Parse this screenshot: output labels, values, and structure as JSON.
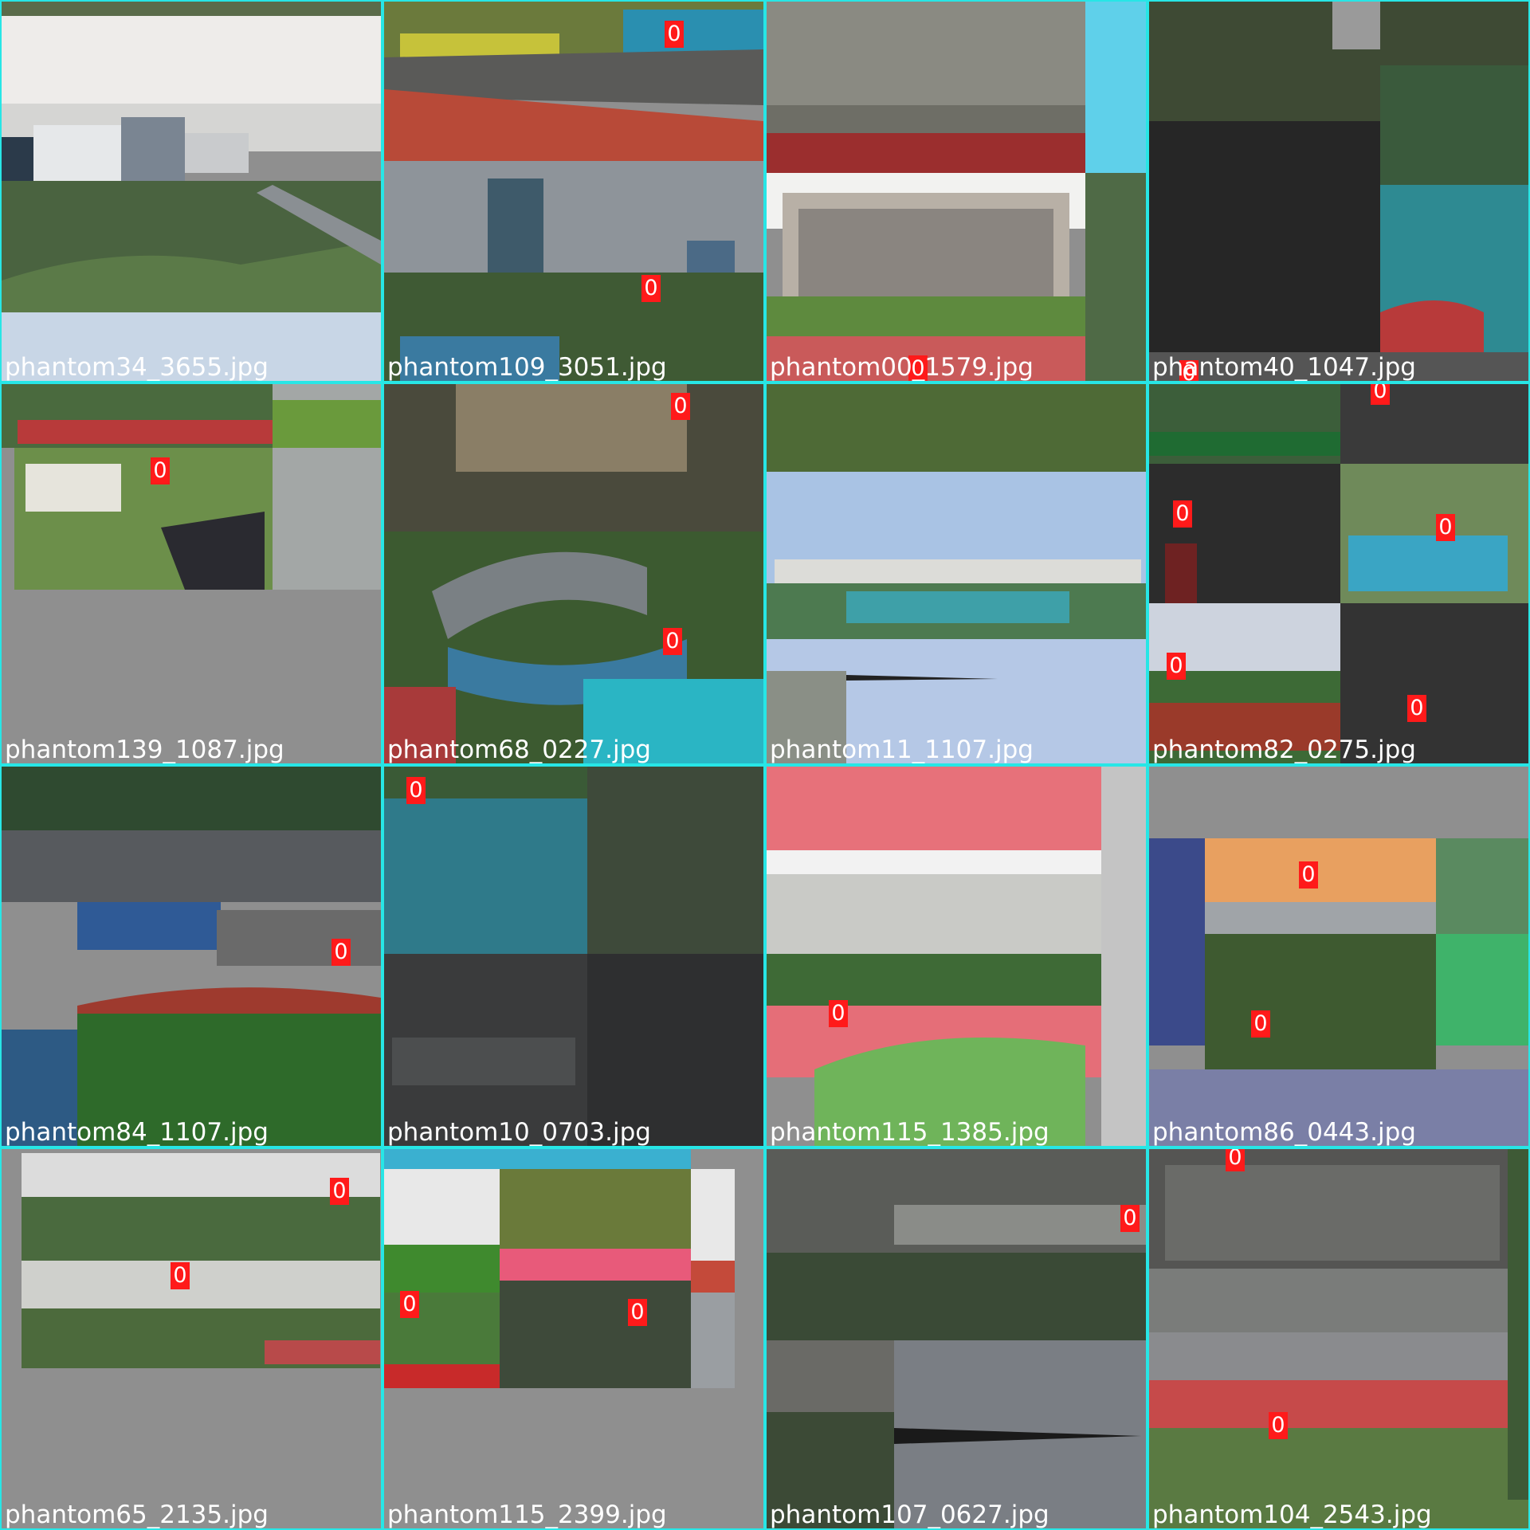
{
  "mosaic": {
    "border_color": "#27e6e6",
    "label_color": "#ff1a1a",
    "tiles": [
      {
        "filename": "phantom34_3655.jpg",
        "detections": []
      },
      {
        "filename": "phantom109_3051.jpg",
        "detections": [
          "0",
          "0"
        ]
      },
      {
        "filename": "phantom00_1579.jpg",
        "detections": [
          "0"
        ]
      },
      {
        "filename": "phantom40_1047.jpg",
        "detections": [
          "0"
        ]
      },
      {
        "filename": "phantom139_1087.jpg",
        "detections": [
          "0"
        ]
      },
      {
        "filename": "phantom68_0227.jpg",
        "detections": [
          "0",
          "0"
        ]
      },
      {
        "filename": "phantom11_1107.jpg",
        "detections": []
      },
      {
        "filename": "phantom82_0275.jpg",
        "detections": [
          "0",
          "0",
          "0",
          "0",
          "0"
        ]
      },
      {
        "filename": "phantom84_1107.jpg",
        "detections": [
          "0"
        ]
      },
      {
        "filename": "phantom10_0703.jpg",
        "detections": [
          "0"
        ]
      },
      {
        "filename": "phantom115_1385.jpg",
        "detections": [
          "0"
        ]
      },
      {
        "filename": "phantom86_0443.jpg",
        "detections": [
          "0",
          "0"
        ]
      },
      {
        "filename": "phantom65_2135.jpg",
        "detections": [
          "0",
          "0"
        ]
      },
      {
        "filename": "phantom115_2399.jpg",
        "detections": [
          "0",
          "0"
        ]
      },
      {
        "filename": "phantom107_0627.jpg",
        "detections": [
          "0"
        ]
      },
      {
        "filename": "phantom104_2543.jpg",
        "detections": [
          "0",
          "0"
        ]
      }
    ]
  }
}
